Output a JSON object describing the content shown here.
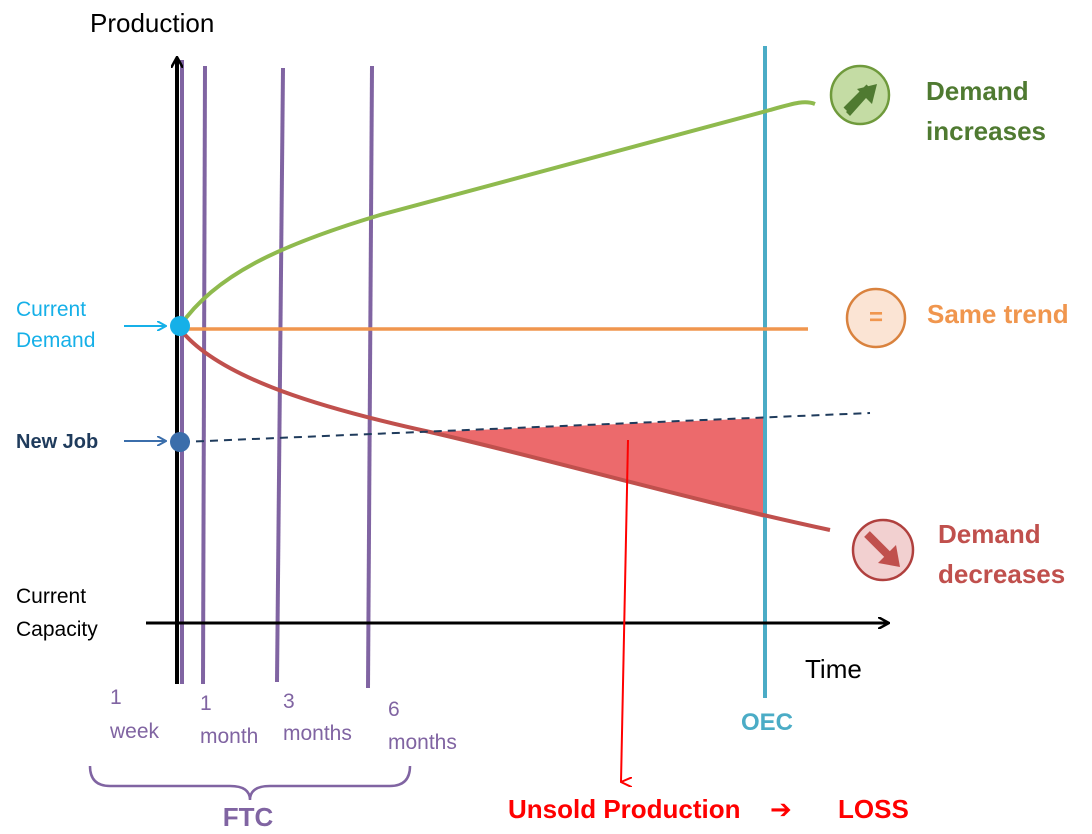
{
  "axes": {
    "y_label": "Production",
    "x_label": "Time"
  },
  "left_labels": {
    "current_demand_line1": "Current",
    "current_demand_line2": "Demand",
    "new_job": "New Job",
    "current_capacity_line1": "Current",
    "current_capacity_line2": "Capacity"
  },
  "scenarios": {
    "increase_line1": "Demand",
    "increase_line2": "increases",
    "same": "Same trend",
    "same_symbol": "=",
    "decrease_line1": "Demand",
    "decrease_line2": "decreases"
  },
  "time_markers": [
    {
      "line1": "1",
      "line2": "week"
    },
    {
      "line1": "1",
      "line2": "month"
    },
    {
      "line1": "3",
      "line2": "months"
    },
    {
      "line1": "6",
      "line2": "months"
    }
  ],
  "oec_label": "OEC",
  "ftc_label": "FTC",
  "loss": {
    "unsold": "Unsold Production",
    "arrow_glyph": "➔",
    "loss": "LOSS"
  },
  "colors": {
    "axis": "#000000",
    "increase": "#8fba4e",
    "increase_text": "#4f7a31",
    "same": "#f0964e",
    "decrease": "#c0504d",
    "current_demand": "#16b0e8",
    "new_job": "#3b6eab",
    "ftc": "#8064a2",
    "oec": "#4bacc6",
    "loss_fill": "#ec6a6c",
    "loss_text": "#ff0000",
    "new_job_text": "#1f3b5c"
  }
}
